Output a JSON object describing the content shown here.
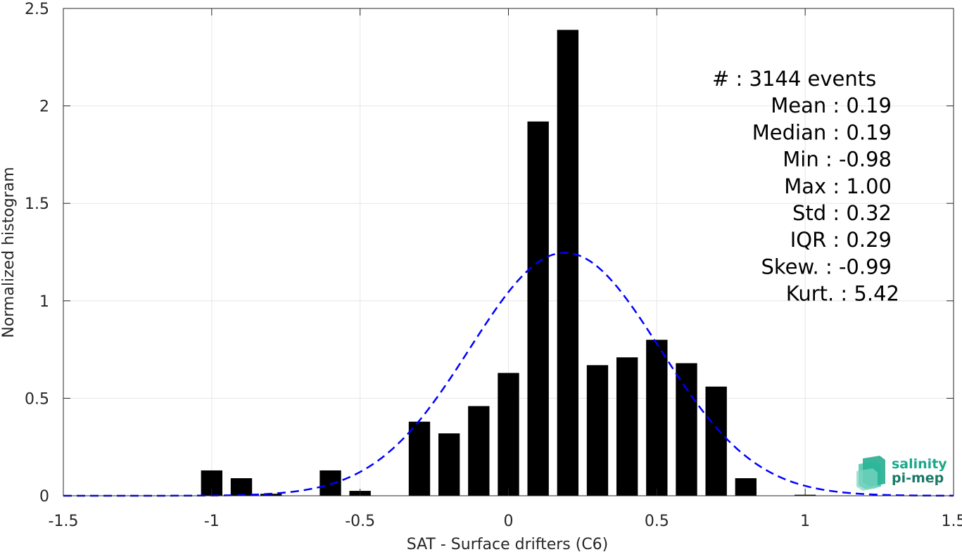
{
  "chart_data": {
    "type": "bar",
    "xlabel": "SAT - Surface drifters (C6)",
    "ylabel": "Normalized histogram",
    "xlim": [
      -1.5,
      1.5
    ],
    "ylim": [
      0,
      2.5
    ],
    "xticks": [
      "-1.5",
      "-1",
      "-0.5",
      "0",
      "0.5",
      "1",
      "1.5"
    ],
    "yticks": [
      "0",
      "0.5",
      "1",
      "1.5",
      "2",
      "2.5"
    ],
    "grid": true,
    "bar_color": "#000000",
    "bins": [
      {
        "x": -1.0,
        "value": 0.13
      },
      {
        "x": -0.9,
        "value": 0.09
      },
      {
        "x": -0.8,
        "value": 0.01
      },
      {
        "x": -0.6,
        "value": 0.13
      },
      {
        "x": -0.5,
        "value": 0.025
      },
      {
        "x": -0.3,
        "value": 0.38
      },
      {
        "x": -0.2,
        "value": 0.32
      },
      {
        "x": -0.1,
        "value": 0.46
      },
      {
        "x": 0.0,
        "value": 0.63
      },
      {
        "x": 0.1,
        "value": 1.92
      },
      {
        "x": 0.2,
        "value": 2.39
      },
      {
        "x": 0.3,
        "value": 0.67
      },
      {
        "x": 0.4,
        "value": 0.71
      },
      {
        "x": 0.5,
        "value": 0.8
      },
      {
        "x": 0.6,
        "value": 0.68
      },
      {
        "x": 0.7,
        "value": 0.56
      },
      {
        "x": 0.8,
        "value": 0.09
      },
      {
        "x": 1.0,
        "value": 0.005
      }
    ],
    "fit_curve": {
      "type": "normal",
      "mean": 0.19,
      "std": 0.32,
      "color": "#0000ff",
      "style": "dashed"
    }
  },
  "stats": [
    {
      "label": "#",
      "value": ": 3144 events"
    },
    {
      "label": "Mean",
      "value": ": 0.19"
    },
    {
      "label": "Median",
      "value": ": 0.19"
    },
    {
      "label": "Min",
      "value": ": -0.98"
    },
    {
      "label": "Max",
      "value": ": 1.00"
    },
    {
      "label": "Std",
      "value": ": 0.32"
    },
    {
      "label": "IQR",
      "value": ": 0.29"
    },
    {
      "label": "Skew.",
      "value": ": -0.99"
    },
    {
      "label": "Kurt.",
      "value": ": 5.42"
    }
  ],
  "logo": {
    "line1": "salinity",
    "line2": "pi-mep",
    "color": "#1aa88a"
  }
}
